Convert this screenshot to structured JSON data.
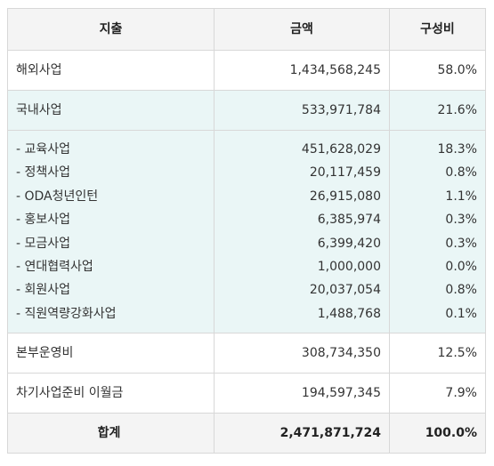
{
  "table": {
    "headers": {
      "expense": "지출",
      "amount": "금액",
      "ratio": "구성비"
    },
    "rows": [
      {
        "label": "해외사업",
        "amount": "1,434,568,245",
        "ratio": "58.0%"
      },
      {
        "label": "국내사업",
        "amount": "533,971,784",
        "ratio": "21.6%"
      }
    ],
    "sub_items": [
      {
        "label": "- 교육사업",
        "amount": "451,628,029",
        "ratio": "18.3%"
      },
      {
        "label": "- 정책사업",
        "amount": "20,117,459",
        "ratio": "0.8%"
      },
      {
        "label": "- ODA청년인턴",
        "amount": "26,915,080",
        "ratio": "1.1%"
      },
      {
        "label": "- 홍보사업",
        "amount": "6,385,974",
        "ratio": "0.3%"
      },
      {
        "label": "- 모금사업",
        "amount": "6,399,420",
        "ratio": "0.3%"
      },
      {
        "label": "- 연대협력사업",
        "amount": "1,000,000",
        "ratio": "0.0%"
      },
      {
        "label": "- 회원사업",
        "amount": "20,037,054",
        "ratio": "0.8%"
      },
      {
        "label": "- 직원역량강화사업",
        "amount": "1,488,768",
        "ratio": "0.1%"
      }
    ],
    "rows_after": [
      {
        "label": "본부운영비",
        "amount": "308,734,350",
        "ratio": "12.5%"
      },
      {
        "label": "차기사업준비 이월금",
        "amount": "194,597,345",
        "ratio": "7.9%"
      }
    ],
    "total": {
      "label": "합계",
      "amount": "2,471,871,724",
      "ratio": "100.0%"
    }
  },
  "colors": {
    "header_bg": "#f4f4f4",
    "domestic_bg": "#eaf6f6",
    "border": "#d8d8d8",
    "text": "#333333"
  }
}
